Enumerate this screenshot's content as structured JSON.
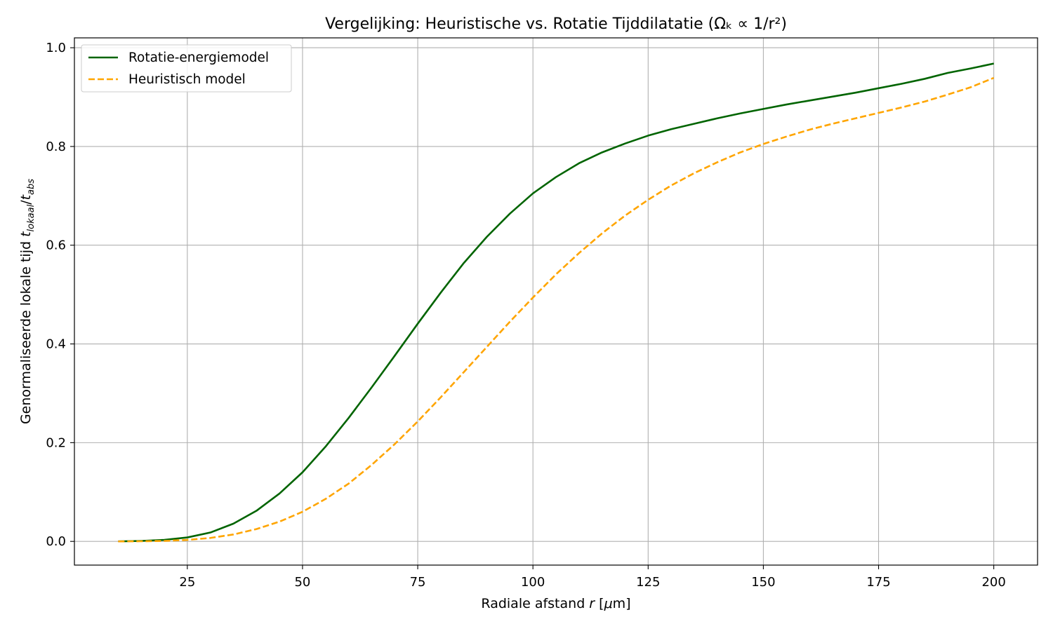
{
  "chart_data": {
    "type": "line",
    "title": "Vergelijking: Heuristische vs. Rotatie Tijddilatatie (Ωₖ ∝ 1/r²)",
    "xlabel": "Radiale afstand r [μm]",
    "xlabel_parts": {
      "prefix": "Radiale afstand ",
      "var": "r",
      "suffix": " [",
      "unit_mu": "μ",
      "unit_rest": "m]"
    },
    "ylabel": "Genormaliseerde lokale tijd t_lokaal/t_abs",
    "ylabel_parts": {
      "prefix": "Genormaliseerde lokale tijd ",
      "t1": "t",
      "sub1": "lokaal",
      "slash": "/",
      "t2": "t",
      "sub2": "abs"
    },
    "xlim": [
      0.5,
      209.5
    ],
    "ylim": [
      -0.048,
      1.02
    ],
    "x_ticks": [
      25,
      50,
      75,
      100,
      125,
      150,
      175,
      200
    ],
    "x_tick_labels": [
      "25",
      "50",
      "75",
      "100",
      "125",
      "150",
      "175",
      "200"
    ],
    "y_ticks": [
      0.0,
      0.2,
      0.4,
      0.6,
      0.8,
      1.0
    ],
    "y_tick_labels": [
      "0.0",
      "0.2",
      "0.4",
      "0.6",
      "0.8",
      "1.0"
    ],
    "grid": true,
    "legend_position": "top-left",
    "series": [
      {
        "name": "Rotatie-energiemodel",
        "color": "#006400",
        "dash": "solid",
        "x": [
          10,
          15,
          20,
          25,
          30,
          35,
          40,
          45,
          50,
          55,
          60,
          65,
          70,
          75,
          80,
          85,
          90,
          95,
          100,
          105,
          110,
          115,
          120,
          125,
          130,
          135,
          140,
          145,
          150,
          155,
          160,
          165,
          170,
          175,
          180,
          185,
          190,
          195,
          200
        ],
        "y": [
          0.0,
          0.001,
          0.003,
          0.008,
          0.018,
          0.036,
          0.062,
          0.097,
          0.14,
          0.192,
          0.25,
          0.312,
          0.376,
          0.441,
          0.504,
          0.564,
          0.617,
          0.664,
          0.705,
          0.738,
          0.766,
          0.788,
          0.806,
          0.822,
          0.835,
          0.846,
          0.857,
          0.867,
          0.876,
          0.885,
          0.893,
          0.901,
          0.909,
          0.918,
          0.927,
          0.937,
          0.949,
          0.958,
          0.968
        ]
      },
      {
        "name": "Heuristisch model",
        "color": "#ffa500",
        "dash": "dashed",
        "x": [
          10,
          15,
          20,
          25,
          30,
          35,
          40,
          45,
          50,
          55,
          60,
          65,
          70,
          75,
          80,
          85,
          90,
          95,
          100,
          105,
          110,
          115,
          120,
          125,
          130,
          135,
          140,
          145,
          150,
          155,
          160,
          165,
          170,
          175,
          180,
          185,
          190,
          195,
          200
        ],
        "y": [
          0.0,
          0.0003,
          0.001,
          0.003,
          0.007,
          0.014,
          0.025,
          0.04,
          0.06,
          0.086,
          0.117,
          0.155,
          0.197,
          0.243,
          0.292,
          0.343,
          0.394,
          0.445,
          0.494,
          0.541,
          0.584,
          0.624,
          0.66,
          0.692,
          0.721,
          0.746,
          0.768,
          0.788,
          0.805,
          0.82,
          0.834,
          0.846,
          0.857,
          0.868,
          0.879,
          0.891,
          0.905,
          0.92,
          0.939
        ]
      }
    ]
  }
}
